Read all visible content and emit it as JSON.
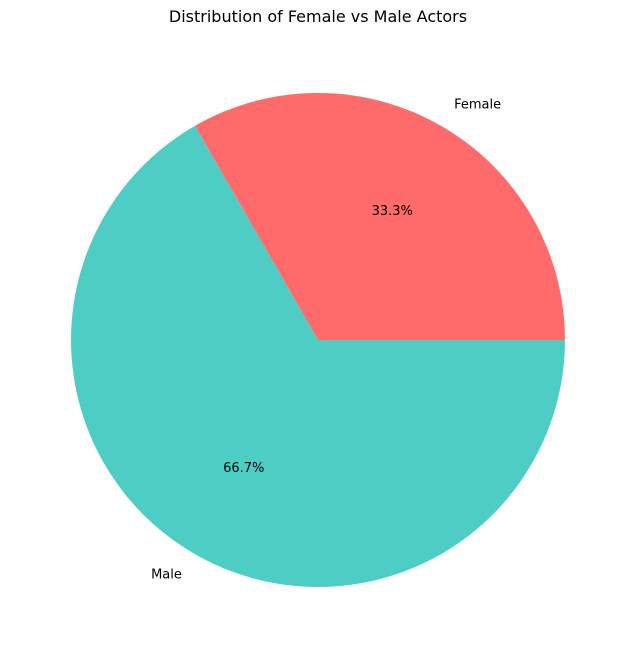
{
  "chart_data": {
    "type": "pie",
    "title": "Distribution of Female vs Male Actors",
    "categories": [
      "Female",
      "Male"
    ],
    "values": [
      33.3,
      66.7
    ],
    "percent_labels": [
      "33.3%",
      "66.7%"
    ],
    "colors": [
      "#ff6b6b",
      "#4ecdc4"
    ],
    "start_angle_deg": 0,
    "direction": "counterclockwise",
    "legend": "none"
  }
}
